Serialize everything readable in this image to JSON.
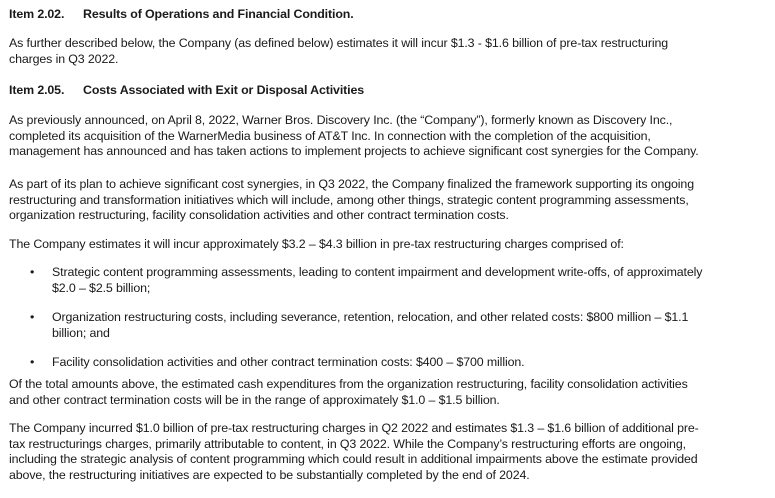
{
  "item_202": {
    "number": "Item 2.02.",
    "title": "Results of Operations and Financial Condition."
  },
  "p1": [
    "As further described below, the Company (as defined below) estimates it will incur $1.3 - $1.6 billion of pre-tax restructuring",
    "charges in Q3 2022."
  ],
  "item_205": {
    "number": "Item 2.05.",
    "title": "Costs Associated with Exit or Disposal Activities"
  },
  "p2": [
    "As previously announced, on April 8, 2022, Warner Bros. Discovery Inc. (the “Company”), formerly known as Discovery Inc.,",
    "completed its acquisition of the WarnerMedia business of AT&T Inc. In connection with the completion of the acquisition,",
    "management has announced and has taken actions to implement projects to achieve significant cost synergies for the Company."
  ],
  "p3": [
    "As part of its plan to achieve significant cost synergies, in Q3 2022, the Company finalized the framework supporting its ongoing",
    "restructuring and transformation initiatives which will include, among other things, strategic content programming assessments,",
    "organization restructuring, facility consolidation activities and other contract termination costs."
  ],
  "p4": [
    "The Company estimates it will incur approximately $3.2 – $4.3 billion in pre-tax restructuring charges comprised of:"
  ],
  "bullet_char": "•",
  "bullets": [
    [
      "Strategic content programming assessments, leading to content impairment and development write-offs, of approximately",
      "$2.0 – $2.5 billion;"
    ],
    [
      "Organization restructuring costs, including severance, retention, relocation, and other related costs: $800 million – $1.1",
      "billion; and"
    ],
    [
      "Facility consolidation activities and other contract termination costs: $400 – $700 million."
    ]
  ],
  "p5": [
    "Of the total amounts above, the estimated cash expenditures from the organization restructuring, facility consolidation activities",
    "and other contract termination costs will be in the range of approximately $1.0 – $1.5 billion."
  ],
  "p6": [
    "The Company incurred $1.0 billion of pre-tax restructuring charges in Q2 2022 and estimates $1.3 – $1.6 billion of additional pre-",
    "tax restructurings charges, primarily attributable to content, in Q3 2022. While the Company’s restructuring efforts are ongoing,",
    "including the strategic analysis of content programming which could result in additional impairments above the estimate provided",
    "above, the restructuring initiatives are expected to be substantially completed by the end of 2024."
  ]
}
